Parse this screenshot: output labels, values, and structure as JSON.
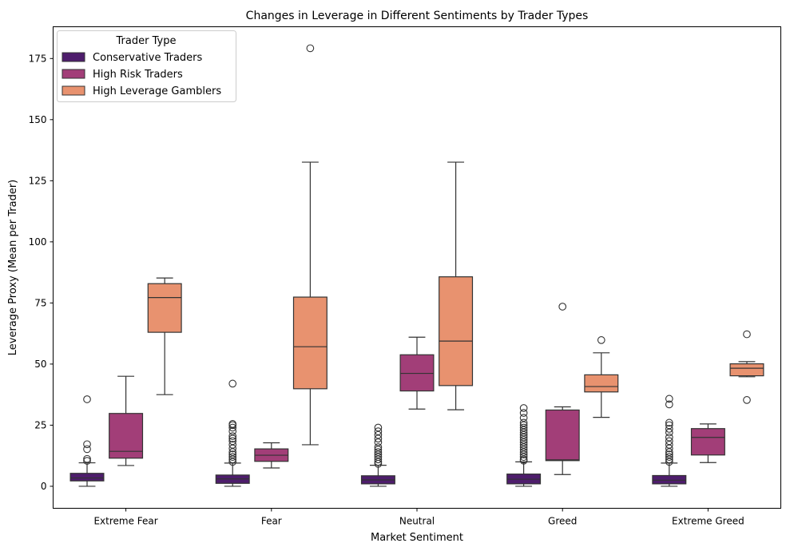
{
  "chart_data": {
    "type": "box",
    "title": "Changes in Leverage in Different Sentiments by Trader Types",
    "xlabel": "Market Sentiment",
    "ylabel": "Leverage Proxy (Mean per Trader)",
    "ylim": [
      -9,
      188
    ],
    "yticks": [
      0,
      25,
      50,
      75,
      100,
      125,
      150,
      175
    ],
    "categories": [
      "Extreme Fear",
      "Fear",
      "Neutral",
      "Greed",
      "Extreme Greed"
    ],
    "legend": {
      "title": "Trader Type",
      "position": "top-left"
    },
    "grid": false,
    "series": [
      {
        "name": "Conservative Traders",
        "color": "#4e1d6c",
        "boxes": [
          {
            "whislo": 0,
            "q1": 2.2,
            "med": 3.4,
            "q3": 5.3,
            "whishi": 9.6,
            "fliers": [
              10.4,
              11.2,
              15.2,
              17.2,
              35.6
            ]
          },
          {
            "whislo": 0,
            "q1": 1.2,
            "med": 3.0,
            "q3": 4.6,
            "whishi": 9.5,
            "fliers": [
              10,
              11,
              12,
              13,
              14,
              15.5,
              17,
              18.5,
              19.5,
              20.5,
              22.5,
              24,
              25,
              25.5,
              42
            ]
          },
          {
            "whislo": 0,
            "q1": 1.0,
            "med": 2.6,
            "q3": 4.3,
            "whishi": 8.6,
            "fliers": [
              9.2,
              10,
              11,
              12,
              13,
              14,
              15,
              16,
              18,
              19.5,
              21,
              22.5,
              24
            ]
          },
          {
            "whislo": 0,
            "q1": 1.0,
            "med": 2.9,
            "q3": 5.0,
            "whishi": 10,
            "fliers": [
              10.5,
              11,
              12,
              13,
              14,
              15,
              16,
              17,
              18,
              19,
              20,
              21,
              22,
              23,
              24,
              25,
              26,
              28,
              30,
              32
            ]
          },
          {
            "whislo": 0,
            "q1": 1.0,
            "med": 2.5,
            "q3": 4.4,
            "whishi": 9.5,
            "fliers": [
              10,
              11,
              12,
              13,
              14,
              15.5,
              17,
              18.5,
              20,
              22,
              23.5,
              25,
              26,
              33.5,
              35.8
            ]
          }
        ]
      },
      {
        "name": "High Risk Traders",
        "color": "#a23e78",
        "boxes": [
          {
            "whislo": 8.5,
            "q1": 11.5,
            "med": 14.3,
            "q3": 29.8,
            "whishi": 45,
            "fliers": []
          },
          {
            "whislo": 7.5,
            "q1": 10.2,
            "med": 12.7,
            "q3": 15.3,
            "whishi": 17.8,
            "fliers": []
          },
          {
            "whislo": 31.6,
            "q1": 39,
            "med": 46.2,
            "q3": 53.8,
            "whishi": 61,
            "fliers": []
          },
          {
            "whislo": 4.8,
            "q1": 10.5,
            "med": 10.8,
            "q3": 31.2,
            "whishi": 32.5,
            "fliers": [
              73.5
            ]
          },
          {
            "whislo": 9.7,
            "q1": 12.8,
            "med": 20,
            "q3": 23.6,
            "whishi": 25.5,
            "fliers": []
          }
        ]
      },
      {
        "name": "High Leverage Gamblers",
        "color": "#e8926f",
        "boxes": [
          {
            "whislo": 37.5,
            "q1": 63,
            "med": 77.2,
            "q3": 82.9,
            "whishi": 85.2,
            "fliers": []
          },
          {
            "whislo": 17,
            "q1": 39.9,
            "med": 57.1,
            "q3": 77.4,
            "whishi": 132.6,
            "fliers": [
              179.2
            ]
          },
          {
            "whislo": 31.3,
            "q1": 41.2,
            "med": 59.4,
            "q3": 85.7,
            "whishi": 132.6,
            "fliers": []
          },
          {
            "whislo": 28.2,
            "q1": 38.6,
            "med": 40.8,
            "q3": 45.6,
            "whishi": 54.6,
            "fliers": [
              59.8
            ]
          },
          {
            "whislo": 44.8,
            "q1": 45.2,
            "med": 48.3,
            "q3": 50.1,
            "whishi": 51,
            "fliers": [
              35.3,
              62.2
            ]
          }
        ]
      }
    ]
  }
}
